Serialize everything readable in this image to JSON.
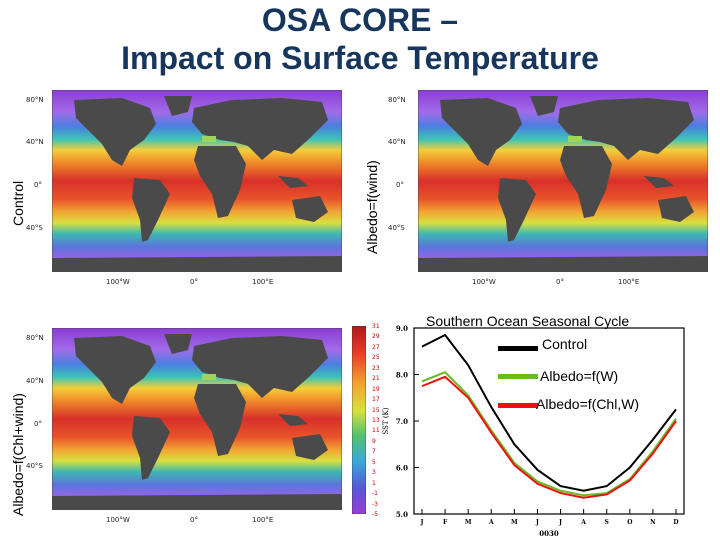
{
  "title": {
    "line1": "OSA CORE –",
    "line2": "Impact on Surface Temperature"
  },
  "panels": {
    "top_left_label": "Control",
    "top_right_label": "Albedo=f(wind)",
    "bottom_left_label": "Albedo=f(Chl+wind)"
  },
  "map_axes": {
    "lat_labels": [
      "80°N",
      "40°N",
      "0°",
      "40°S"
    ],
    "lon_labels": [
      "100°W",
      "0°",
      "100°E"
    ]
  },
  "colorbar": {
    "labels": [
      "31",
      "29",
      "27",
      "25",
      "23",
      "21",
      "19",
      "17",
      "15",
      "13",
      "11",
      "9",
      "7",
      "5",
      "3",
      "1",
      "-1",
      "-3",
      "-5"
    ]
  },
  "colors": {
    "title": "#17365d",
    "control_line": "#000000",
    "albedo_w_line": "#66bb22",
    "albedo_chl_line": "#ee1111"
  },
  "chart_data": {
    "type": "line",
    "title": "Southern Ocean Seasonal Cycle",
    "xlabel": "0030",
    "ylabel": "SST (K)",
    "categories": [
      "J",
      "F",
      "M",
      "A",
      "M",
      "J",
      "J",
      "A",
      "S",
      "O",
      "N",
      "D"
    ],
    "ylim": [
      5.0,
      9.0
    ],
    "yticks": [
      "9.0",
      "8.0",
      "7.0",
      "6.0",
      "5.0"
    ],
    "series": [
      {
        "name": "Control",
        "color": "#000000",
        "values": [
          8.6,
          8.85,
          8.2,
          7.3,
          6.5,
          5.95,
          5.6,
          5.5,
          5.6,
          6.0,
          6.6,
          7.25
        ]
      },
      {
        "name": "Albedo=f(W)",
        "color": "#66bb22",
        "values": [
          7.85,
          8.05,
          7.55,
          6.8,
          6.1,
          5.7,
          5.5,
          5.4,
          5.45,
          5.75,
          6.35,
          7.05
        ]
      },
      {
        "name": "Albedo=f(Chl,W)",
        "color": "#ee1111",
        "values": [
          7.75,
          7.95,
          7.5,
          6.75,
          6.05,
          5.65,
          5.45,
          5.35,
          5.42,
          5.72,
          6.3,
          7.0
        ]
      }
    ]
  }
}
